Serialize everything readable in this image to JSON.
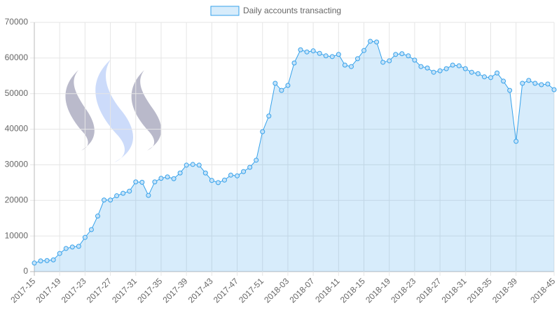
{
  "chart_data": {
    "type": "line",
    "categories": [
      "2017-15",
      null,
      null,
      null,
      "2017-19",
      null,
      null,
      null,
      "2017-23",
      null,
      null,
      null,
      "2017-27",
      null,
      null,
      null,
      "2017-31",
      null,
      null,
      null,
      "2017-35",
      null,
      null,
      null,
      "2017-39",
      null,
      null,
      null,
      "2017-43",
      null,
      null,
      null,
      "2017-47",
      null,
      null,
      null,
      "2017-51",
      null,
      null,
      null,
      "2018-03",
      null,
      null,
      null,
      "2018-07",
      null,
      null,
      null,
      "2018-11",
      null,
      null,
      null,
      "2018-15",
      null,
      null,
      null,
      "2018-19",
      null,
      null,
      null,
      "2018-23",
      null,
      null,
      null,
      "2018-27",
      null,
      null,
      null,
      "2018-31",
      null,
      null,
      null,
      "2018-35",
      null,
      null,
      null,
      "2018-39",
      null,
      null,
      null,
      null,
      null,
      "2018-45"
    ],
    "series": [
      {
        "name": "Daily accounts transacting",
        "color": "#36a2eb",
        "values": [
          2400,
          3000,
          3100,
          3300,
          5100,
          6500,
          6900,
          7100,
          9600,
          11800,
          15600,
          20100,
          20100,
          21300,
          22000,
          22600,
          25200,
          25100,
          21400,
          25200,
          26200,
          26600,
          26100,
          27700,
          29900,
          30100,
          29900,
          27700,
          25600,
          25000,
          25700,
          27100,
          26900,
          28100,
          29300,
          31300,
          39300,
          43700,
          52900,
          50900,
          52300,
          58600,
          62300,
          61700,
          62000,
          61300,
          60600,
          60400,
          61000,
          58000,
          57600,
          59800,
          62100,
          64700,
          64500,
          58800,
          59200,
          61000,
          61200,
          60600,
          59400,
          57600,
          57200,
          56000,
          56400,
          57000,
          58000,
          57800,
          57000,
          56000,
          55600,
          54700,
          54500,
          55800,
          53500,
          50900,
          36600,
          52900,
          53700,
          52900,
          52500,
          52700,
          51100
        ]
      }
    ],
    "ylim": [
      0,
      70000
    ],
    "yticks": [
      0,
      10000,
      20000,
      30000,
      40000,
      50000,
      60000,
      70000
    ],
    "grid": true,
    "legend": "top"
  }
}
